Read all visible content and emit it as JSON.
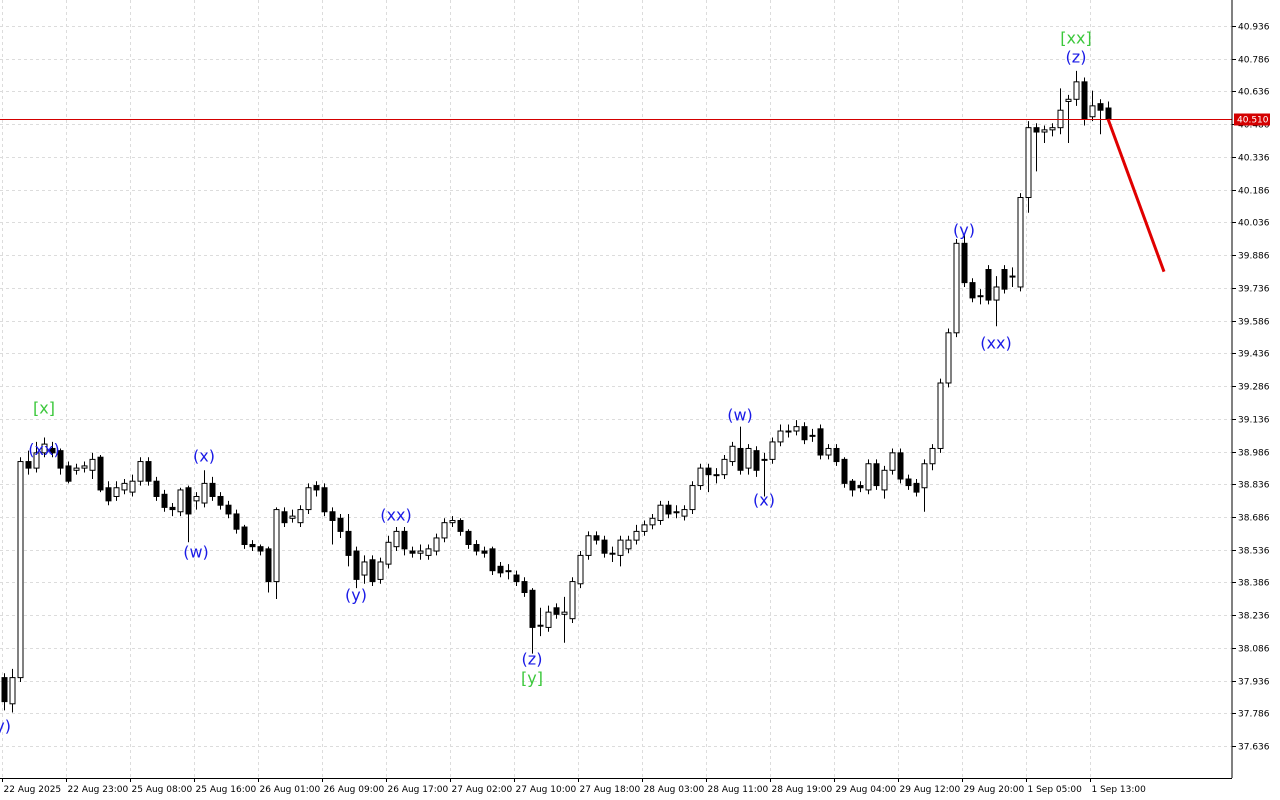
{
  "chart_data": {
    "type": "candlestick",
    "categories": [
      "22 Aug 2025",
      null,
      null,
      null,
      null,
      null,
      null,
      null,
      "22 Aug 23:00",
      null,
      null,
      null,
      null,
      null,
      null,
      null,
      "25 Aug 08:00",
      null,
      null,
      null,
      null,
      null,
      null,
      null,
      "25 Aug 16:00",
      null,
      null,
      null,
      null,
      null,
      null,
      null,
      "26 Aug 01:00",
      null,
      null,
      null,
      null,
      null,
      null,
      null,
      "26 Aug 09:00",
      null,
      null,
      null,
      null,
      null,
      null,
      null,
      "26 Aug 17:00",
      null,
      null,
      null,
      null,
      null,
      null,
      null,
      "27 Aug 02:00",
      null,
      null,
      null,
      null,
      null,
      null,
      null,
      "27 Aug 10:00",
      null,
      null,
      null,
      null,
      null,
      null,
      null,
      "27 Aug 18:00",
      null,
      null,
      null,
      null,
      null,
      null,
      null,
      "28 Aug 03:00",
      null,
      null,
      null,
      null,
      null,
      null,
      null,
      "28 Aug 11:00",
      null,
      null,
      null,
      null,
      null,
      null,
      null,
      "28 Aug 19:00",
      null,
      null,
      null,
      null,
      null,
      null,
      null,
      "29 Aug 04:00",
      null,
      null,
      null,
      null,
      null,
      null,
      null,
      "29 Aug 12:00",
      null,
      null,
      null,
      null,
      null,
      null,
      null,
      "29 Aug 20:00",
      null,
      null,
      null,
      null,
      null,
      null,
      null,
      "1 Sep 05:00",
      null,
      null,
      null,
      null,
      null,
      null,
      null,
      "1 Sep 13:00",
      null,
      null
    ],
    "open": [
      37.95,
      37.83,
      37.95,
      38.94,
      38.91,
      38.98,
      39.0,
      38.99,
      38.92,
      38.9,
      38.91,
      38.9,
      38.96,
      38.82,
      38.78,
      38.81,
      38.8,
      38.85,
      38.94,
      38.85,
      38.79,
      38.73,
      38.71,
      38.82,
      38.76,
      38.75,
      38.84,
      38.78,
      38.74,
      38.7,
      38.64,
      38.56,
      38.55,
      38.54,
      38.39,
      38.71,
      38.68,
      38.66,
      38.72,
      38.83,
      38.82,
      38.71,
      38.68,
      38.62,
      38.53,
      38.42,
      38.49,
      38.4,
      38.47,
      38.55,
      38.62,
      38.53,
      38.52,
      38.51,
      38.53,
      38.59,
      38.66,
      38.67,
      38.62,
      38.56,
      38.53,
      38.54,
      38.46,
      38.44,
      38.42,
      38.39,
      38.35,
      38.19,
      38.18,
      38.27,
      38.24,
      38.22,
      38.38,
      38.51,
      38.6,
      38.58,
      38.52,
      38.51,
      38.54,
      38.58,
      38.62,
      38.65,
      38.67,
      38.74,
      38.71,
      38.69,
      38.72,
      38.83,
      38.91,
      38.88,
      38.88,
      38.94,
      39.0,
      38.91,
      38.99,
      38.95,
      38.95,
      39.03,
      39.08,
      39.08,
      39.1,
      39.06,
      39.09,
      38.97,
      39.0,
      38.95,
      38.85,
      38.83,
      38.81,
      38.93,
      38.81,
      38.9,
      38.98,
      38.86,
      38.84,
      38.82,
      38.93,
      39.0,
      39.3,
      39.53,
      39.94,
      39.76,
      39.7,
      39.82,
      39.68,
      39.82,
      39.79,
      39.74,
      40.15,
      40.47,
      40.45,
      40.46,
      40.47,
      40.59,
      40.6,
      40.68,
      40.52,
      40.58,
      40.56
    ],
    "high": [
      37.97,
      37.99,
      38.96,
      38.99,
      39.03,
      39.05,
      39.03,
      39.0,
      38.94,
      38.93,
      38.94,
      38.98,
      38.97,
      38.85,
      38.85,
      38.86,
      38.88,
      38.96,
      38.96,
      38.87,
      38.81,
      38.75,
      38.82,
      38.83,
      38.8,
      38.9,
      38.87,
      38.8,
      38.76,
      38.72,
      38.65,
      38.58,
      38.56,
      38.55,
      38.73,
      38.73,
      38.72,
      38.74,
      38.84,
      38.85,
      38.84,
      38.73,
      38.7,
      38.7,
      38.55,
      38.51,
      38.51,
      38.5,
      38.6,
      38.64,
      38.64,
      38.55,
      38.56,
      38.56,
      38.61,
      38.68,
      38.69,
      38.68,
      38.63,
      38.58,
      38.55,
      38.55,
      38.48,
      38.47,
      38.44,
      38.41,
      38.36,
      38.27,
      38.28,
      38.29,
      38.32,
      38.41,
      38.53,
      38.62,
      38.62,
      38.6,
      38.55,
      38.6,
      38.6,
      38.65,
      38.67,
      38.7,
      38.76,
      38.76,
      38.74,
      38.74,
      38.85,
      38.93,
      38.93,
      38.91,
      38.97,
      39.03,
      39.1,
      39.02,
      39.01,
      38.98,
      39.05,
      39.11,
      39.11,
      39.13,
      39.12,
      39.09,
      39.11,
      39.02,
      39.02,
      38.96,
      38.86,
      38.85,
      38.95,
      38.95,
      38.92,
      39.0,
      39.0,
      38.88,
      38.86,
      38.95,
      39.02,
      39.32,
      39.55,
      39.96,
      39.98,
      39.78,
      39.73,
      39.84,
      39.79,
      39.84,
      39.83,
      40.17,
      40.5,
      40.49,
      40.48,
      40.49,
      40.65,
      40.62,
      40.73,
      40.7,
      40.64,
      40.6,
      40.59
    ],
    "low": [
      37.8,
      37.79,
      37.93,
      38.88,
      38.89,
      38.96,
      38.96,
      38.88,
      38.84,
      38.88,
      38.89,
      38.86,
      38.8,
      38.74,
      38.76,
      38.79,
      38.78,
      38.83,
      38.83,
      38.76,
      38.71,
      38.69,
      38.69,
      38.57,
      38.72,
      38.73,
      38.76,
      38.72,
      38.68,
      38.61,
      38.54,
      38.53,
      38.51,
      38.34,
      38.31,
      38.64,
      38.66,
      38.64,
      38.7,
      38.78,
      38.69,
      38.56,
      38.59,
      38.46,
      38.36,
      38.38,
      38.37,
      38.38,
      38.45,
      38.53,
      38.51,
      38.5,
      38.49,
      38.49,
      38.51,
      38.57,
      38.64,
      38.6,
      38.54,
      38.51,
      38.5,
      38.42,
      38.41,
      38.4,
      38.37,
      38.32,
      38.06,
      38.14,
      38.16,
      38.22,
      38.11,
      38.2,
      38.36,
      38.49,
      38.56,
      38.5,
      38.48,
      38.46,
      38.52,
      38.56,
      38.6,
      38.63,
      38.65,
      38.68,
      38.68,
      38.67,
      38.7,
      38.81,
      38.8,
      38.84,
      38.86,
      38.92,
      38.88,
      38.88,
      38.87,
      38.78,
      38.93,
      39.01,
      39.05,
      39.06,
      39.02,
      39.03,
      38.95,
      38.95,
      38.92,
      38.82,
      38.78,
      38.8,
      38.79,
      38.81,
      38.77,
      38.88,
      38.84,
      38.81,
      38.78,
      38.71,
      38.9,
      38.98,
      39.28,
      39.51,
      39.74,
      39.67,
      39.66,
      39.66,
      39.56,
      39.71,
      39.74,
      39.72,
      40.08,
      40.27,
      40.4,
      40.43,
      40.44,
      40.4,
      40.57,
      40.48,
      40.5,
      40.44,
      40.49
    ],
    "close": [
      37.84,
      37.95,
      38.94,
      38.91,
      38.98,
      39.02,
      38.98,
      38.91,
      38.85,
      38.91,
      38.92,
      38.95,
      38.81,
      38.76,
      38.82,
      38.84,
      38.85,
      38.94,
      38.85,
      38.78,
      38.73,
      38.72,
      38.81,
      38.7,
      38.78,
      38.84,
      38.78,
      38.74,
      38.7,
      38.63,
      38.56,
      38.55,
      38.53,
      38.39,
      38.72,
      38.66,
      38.69,
      38.72,
      38.82,
      38.81,
      38.71,
      38.67,
      38.62,
      38.51,
      38.4,
      38.48,
      38.39,
      38.48,
      38.57,
      38.62,
      38.54,
      38.52,
      38.53,
      38.54,
      38.59,
      38.66,
      38.67,
      38.62,
      38.56,
      38.53,
      38.52,
      38.44,
      38.43,
      38.44,
      38.39,
      38.34,
      38.18,
      38.19,
      38.25,
      38.24,
      38.25,
      38.39,
      38.51,
      38.6,
      38.58,
      38.52,
      38.52,
      38.58,
      38.58,
      38.62,
      38.65,
      38.68,
      38.74,
      38.7,
      38.71,
      38.72,
      38.83,
      38.91,
      38.88,
      38.88,
      38.95,
      39.01,
      38.9,
      39.0,
      38.9,
      38.95,
      39.03,
      39.08,
      39.08,
      39.1,
      39.04,
      39.06,
      38.97,
      39.0,
      38.94,
      38.84,
      38.81,
      38.82,
      38.93,
      38.83,
      38.9,
      38.98,
      38.86,
      38.83,
      38.8,
      38.93,
      39.0,
      39.3,
      39.53,
      39.94,
      39.76,
      39.69,
      39.7,
      39.68,
      39.74,
      39.73,
      39.79,
      40.15,
      40.47,
      40.45,
      40.46,
      40.47,
      40.55,
      40.6,
      40.68,
      40.51,
      40.57,
      40.55,
      40.51
    ],
    "ylim": [
      37.49,
      41.055
    ],
    "yticks": [
      40.936,
      40.786,
      40.636,
      40.486,
      40.336,
      40.186,
      40.036,
      39.886,
      39.736,
      39.586,
      39.436,
      39.286,
      39.136,
      38.986,
      38.836,
      38.686,
      38.536,
      38.386,
      38.236,
      38.086,
      37.936,
      37.786,
      37.636
    ],
    "grid": true,
    "current_price": {
      "value": 40.51,
      "label": "40.510",
      "color": "#d40000"
    },
    "forecast": {
      "color": "#e00000",
      "from": {
        "index": 138,
        "price": 40.51
      },
      "to": {
        "index": 145,
        "price": 39.81
      }
    },
    "annotations": [
      {
        "text": "(y)",
        "index": -0.5,
        "price": 37.723,
        "color": "#1a1ae6"
      },
      {
        "text": "[x]",
        "index": 5,
        "price": 39.181,
        "color": "#3cc83c"
      },
      {
        "text": "(xx)",
        "index": 5,
        "price": 38.99,
        "color": "#1a1ae6"
      },
      {
        "text": "(x)",
        "index": 25,
        "price": 38.961,
        "color": "#1a1ae6"
      },
      {
        "text": "(w)",
        "index": 24,
        "price": 38.521,
        "color": "#1a1ae6"
      },
      {
        "text": "(xx)",
        "index": 49,
        "price": 38.69,
        "color": "#1a1ae6"
      },
      {
        "text": "(y)",
        "index": 44,
        "price": 38.324,
        "color": "#1a1ae6"
      },
      {
        "text": "(z)",
        "index": 66,
        "price": 38.03,
        "color": "#1a1ae6"
      },
      {
        "text": "[y]",
        "index": 66,
        "price": 37.943,
        "color": "#3cc83c"
      },
      {
        "text": "(w)",
        "index": 92,
        "price": 39.149,
        "color": "#1a1ae6"
      },
      {
        "text": "(x)",
        "index": 95,
        "price": 38.759,
        "color": "#1a1ae6"
      },
      {
        "text": "(y)",
        "index": 120,
        "price": 39.996,
        "color": "#1a1ae6"
      },
      {
        "text": "(xx)",
        "index": 124,
        "price": 39.479,
        "color": "#1a1ae6"
      },
      {
        "text": "(z)",
        "index": 134,
        "price": 40.789,
        "color": "#1a1ae6"
      },
      {
        "text": "[xx]",
        "index": 134,
        "price": 40.876,
        "color": "#3cc83c"
      }
    ]
  }
}
